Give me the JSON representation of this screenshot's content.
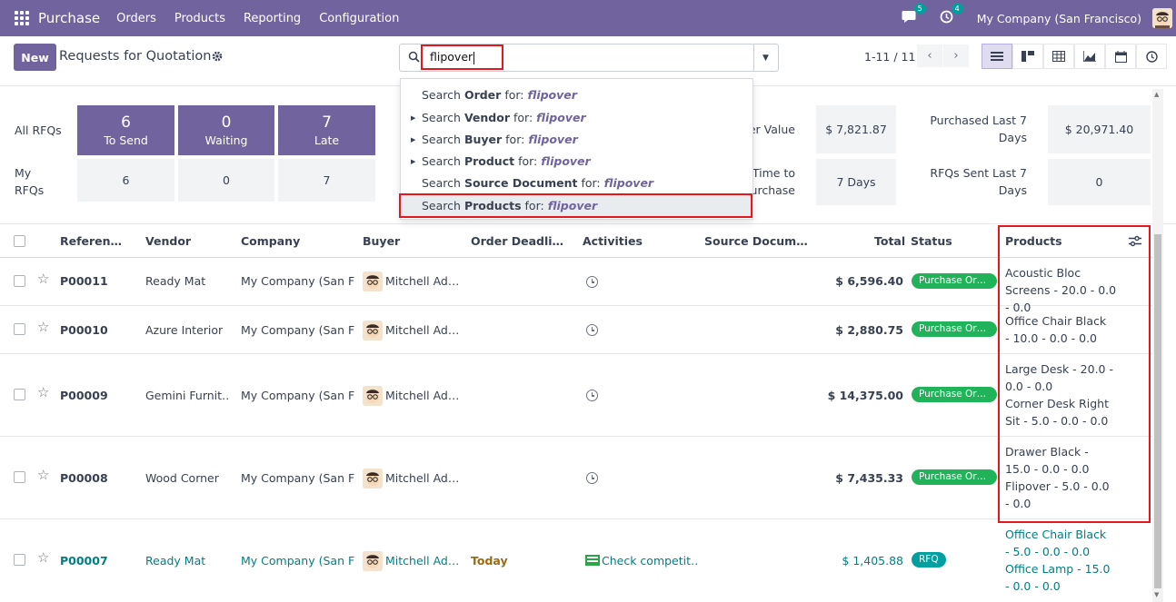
{
  "navbar": {
    "app_name": "Purchase",
    "menu": [
      "Orders",
      "Products",
      "Reporting",
      "Configuration"
    ],
    "chat_badge": "5",
    "activity_badge": "4",
    "company": "My Company (San Francisco)"
  },
  "control": {
    "new_label": "New",
    "title": "Requests for Quotation",
    "search_value": "flipover",
    "pager": "1-11 / 11"
  },
  "dropdown": {
    "prefix": "Search",
    "for": "for:",
    "items": [
      {
        "field": "Order",
        "expandable": false
      },
      {
        "field": "Vendor",
        "expandable": true
      },
      {
        "field": "Buyer",
        "expandable": true
      },
      {
        "field": "Product",
        "expandable": true
      },
      {
        "field": "Source Document",
        "expandable": false
      },
      {
        "field": "Products",
        "expandable": false
      }
    ]
  },
  "dashboard": {
    "all_rfqs_label": "All RFQs",
    "my_rfqs_label": "My RFQs",
    "tiles": [
      {
        "value": "6",
        "label": "To Send"
      },
      {
        "value": "0",
        "label": "Waiting"
      },
      {
        "value": "7",
        "label": "Late"
      }
    ],
    "my_values": [
      "6",
      "0",
      "7"
    ],
    "kpis": [
      {
        "label": "er Value",
        "value": "$ 7,821.87"
      },
      {
        "label": "Purchased Last 7 Days",
        "value": "$ 20,971.40"
      },
      {
        "label": "Time to Purchase",
        "value": "7 Days"
      },
      {
        "label": "RFQs Sent Last 7 Days",
        "value": "0"
      }
    ]
  },
  "table": {
    "headers": {
      "reference": "Referen…",
      "vendor": "Vendor",
      "company": "Company",
      "buyer": "Buyer",
      "deadline": "Order Deadli…",
      "activities": "Activities",
      "source": "Source Docum…",
      "total": "Total",
      "status": "Status",
      "products": "Products"
    },
    "rows": [
      {
        "ref": "P00011",
        "vendor": "Ready Mat",
        "company": "My Company (San F…",
        "buyer": "Mitchell Ad…",
        "deadline": "",
        "activity": "",
        "total": "$ 6,596.40",
        "status": "Purchase Or…",
        "products": [
          "Acoustic Bloc Screens - 20.0 - 0.0 - 0.0"
        ]
      },
      {
        "ref": "P00010",
        "vendor": "Azure Interior",
        "company": "My Company (San F…",
        "buyer": "Mitchell Ad…",
        "deadline": "",
        "activity": "",
        "total": "$ 2,880.75",
        "status": "Purchase Or…",
        "products": [
          "Office Chair Black - 10.0 - 0.0 - 0.0"
        ]
      },
      {
        "ref": "P00009",
        "vendor": "Gemini Furnit…",
        "company": "My Company (San F…",
        "buyer": "Mitchell Ad…",
        "deadline": "",
        "activity": "",
        "total": "$ 14,375.00",
        "status": "Purchase Or…",
        "products": [
          "Large Desk - 20.0 - 0.0 - 0.0",
          "Corner Desk Right Sit - 5.0 - 0.0 - 0.0"
        ]
      },
      {
        "ref": "P00008",
        "vendor": "Wood Corner",
        "company": "My Company (San F…",
        "buyer": "Mitchell Ad…",
        "deadline": "",
        "activity": "",
        "total": "$ 7,435.33",
        "status": "Purchase Or…",
        "products": [
          "Drawer Black - 15.0 - 0.0 - 0.0",
          "Flipover - 5.0 - 0.0 - 0.0"
        ]
      },
      {
        "ref": "P00007",
        "vendor": "Ready Mat",
        "company": "My Company (San F…",
        "buyer": "Mitchell Ad…",
        "deadline": "Today",
        "activity": "Check competit…",
        "total": "$ 1,405.88",
        "status": "RFQ",
        "products": [
          "Office Chair Black - 5.0 - 0.0 - 0.0",
          "Office Lamp - 15.0 - 0.0 - 0.0"
        ]
      }
    ]
  }
}
